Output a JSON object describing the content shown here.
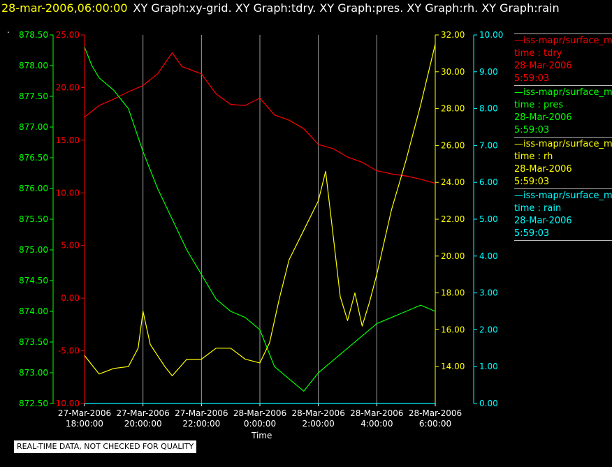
{
  "header": {
    "timestamp": "28-mar-2006,06:00:00",
    "graph_titles": "XY Graph:xy-grid.  XY Graph:tdry.  XY Graph:pres.  XY Graph:rh.  XY Graph:rain"
  },
  "marker": ".",
  "note": "REAL-TIME DATA, NOT CHECKED FOR QUALITY",
  "legend": [
    {
      "line": "—iss-mapr/surface_m",
      "var": "time : tdry",
      "date": "28-Mar-2006",
      "time": "5:59:03",
      "color": "#ff0000"
    },
    {
      "line": "—iss-mapr/surface_m",
      "var": "time : pres",
      "date": "28-Mar-2006",
      "time": "5:59:03",
      "color": "#00ff00"
    },
    {
      "line": "—iss-mapr/surface_m",
      "var": "time : rh",
      "date": "28-Mar-2006",
      "time": "5:59:03",
      "color": "#ffff00"
    },
    {
      "line": "—iss-mapr/surface_m",
      "var": "time : rain",
      "date": "28-Mar-2006",
      "time": "5:59:03",
      "color": "#00ffff"
    }
  ],
  "chart_data": {
    "type": "line",
    "xlabel": "Time",
    "x_ticks": [
      [
        "27-Mar-2006",
        "18:00:00"
      ],
      [
        "27-Mar-2006",
        "20:00:00"
      ],
      [
        "27-Mar-2006",
        "22:00:00"
      ],
      [
        "28-Mar-2006",
        "0:00:00"
      ],
      [
        "28-Mar-2006",
        "2:00:00"
      ],
      [
        "28-Mar-2006",
        "4:00:00"
      ],
      [
        "28-Mar-2006",
        "6:00:00"
      ]
    ],
    "xlim": [
      "2006-03-27T18:00",
      "2006-03-28T06:00"
    ],
    "grid": "vertical lines at x ticks",
    "axes": {
      "pres": {
        "color": "#00ff00",
        "side": "left-outer",
        "ylim": [
          872.5,
          878.5
        ],
        "ticks": [
          "872.50",
          "873.00",
          "873.50",
          "874.00",
          "874.50",
          "875.00",
          "875.50",
          "876.00",
          "876.50",
          "877.00",
          "877.50",
          "878.00",
          "878.50"
        ]
      },
      "tdry": {
        "color": "#ff0000",
        "side": "left-inner",
        "ylim": [
          -10,
          25
        ],
        "ticks": [
          "-10.00",
          "-5.00",
          "0.00",
          "5.00",
          "10.00",
          "15.00",
          "20.00",
          "25.00"
        ]
      },
      "rh": {
        "color": "#ffff00",
        "side": "right-inner",
        "ylim": [
          12,
          32
        ],
        "ticks": [
          "14.00",
          "16.00",
          "18.00",
          "20.00",
          "22.00",
          "24.00",
          "26.00",
          "28.00",
          "30.00",
          "32.00"
        ]
      },
      "rain": {
        "color": "#00ffff",
        "side": "right-outer",
        "ylim": [
          0,
          10
        ],
        "ticks": [
          "0.00",
          "1.00",
          "2.00",
          "3.00",
          "4.00",
          "5.00",
          "6.00",
          "7.00",
          "8.00",
          "9.00",
          "10.00"
        ]
      }
    },
    "series": [
      {
        "name": "tdry",
        "axis": "tdry",
        "color": "#ff0000",
        "x": [
          "2006-03-27T18:00",
          "2006-03-27T18:30",
          "2006-03-27T19:00",
          "2006-03-27T19:30",
          "2006-03-27T20:00",
          "2006-03-27T20:30",
          "2006-03-27T21:00",
          "2006-03-27T21:20",
          "2006-03-27T22:00",
          "2006-03-27T22:30",
          "2006-03-27T23:00",
          "2006-03-27T23:30",
          "2006-03-28T00:00",
          "2006-03-28T00:30",
          "2006-03-28T01:00",
          "2006-03-28T01:30",
          "2006-03-28T02:00",
          "2006-03-28T02:30",
          "2006-03-28T03:00",
          "2006-03-28T03:30",
          "2006-03-28T04:00",
          "2006-03-28T04:30",
          "2006-03-28T05:00",
          "2006-03-28T05:30",
          "2006-03-28T06:00"
        ],
        "y": [
          17.2,
          18.3,
          18.9,
          19.6,
          20.2,
          21.3,
          23.3,
          22.0,
          21.3,
          19.4,
          18.4,
          18.3,
          19.0,
          17.4,
          16.9,
          16.1,
          14.6,
          14.2,
          13.4,
          12.9,
          12.1,
          11.8,
          11.6,
          11.3,
          10.9
        ]
      },
      {
        "name": "pres",
        "axis": "pres",
        "color": "#00ff00",
        "x": [
          "2006-03-27T18:00",
          "2006-03-27T18:15",
          "2006-03-27T18:30",
          "2006-03-27T19:00",
          "2006-03-27T19:30",
          "2006-03-27T20:00",
          "2006-03-27T20:30",
          "2006-03-27T21:00",
          "2006-03-27T21:30",
          "2006-03-27T22:00",
          "2006-03-27T22:30",
          "2006-03-27T23:00",
          "2006-03-27T23:30",
          "2006-03-28T00:00",
          "2006-03-28T00:30",
          "2006-03-28T01:00",
          "2006-03-28T01:30",
          "2006-03-28T02:00",
          "2006-03-28T02:30",
          "2006-03-28T03:00",
          "2006-03-28T03:30",
          "2006-03-28T04:00",
          "2006-03-28T04:30",
          "2006-03-28T05:00",
          "2006-03-28T05:30",
          "2006-03-28T06:00"
        ],
        "y": [
          878.3,
          878.0,
          877.8,
          877.6,
          877.3,
          876.6,
          876.0,
          875.5,
          875.0,
          874.6,
          874.2,
          874.0,
          873.9,
          873.7,
          873.1,
          872.9,
          872.7,
          873.0,
          873.2,
          873.4,
          873.6,
          873.8,
          873.9,
          874.0,
          874.1,
          874.0
        ]
      },
      {
        "name": "rh",
        "axis": "rh",
        "color": "#ffff00",
        "x": [
          "2006-03-27T18:00",
          "2006-03-27T18:30",
          "2006-03-27T19:00",
          "2006-03-27T19:30",
          "2006-03-27T19:50",
          "2006-03-27T20:00",
          "2006-03-27T20:15",
          "2006-03-27T20:45",
          "2006-03-27T21:00",
          "2006-03-27T21:30",
          "2006-03-27T22:00",
          "2006-03-27T22:30",
          "2006-03-27T23:00",
          "2006-03-27T23:30",
          "2006-03-28T00:00",
          "2006-03-28T00:20",
          "2006-03-28T00:40",
          "2006-03-28T01:00",
          "2006-03-28T01:30",
          "2006-03-28T02:00",
          "2006-03-28T02:15",
          "2006-03-28T02:30",
          "2006-03-28T02:45",
          "2006-03-28T03:00",
          "2006-03-28T03:15",
          "2006-03-28T03:30",
          "2006-03-28T03:45",
          "2006-03-28T04:00",
          "2006-03-28T04:30",
          "2006-03-28T05:00",
          "2006-03-28T05:30",
          "2006-03-28T06:00"
        ],
        "y": [
          14.6,
          13.6,
          13.9,
          14.0,
          15.0,
          17.0,
          15.2,
          14.0,
          13.5,
          14.4,
          14.4,
          15.0,
          15.0,
          14.4,
          14.2,
          15.3,
          17.7,
          19.8,
          21.4,
          23.0,
          24.6,
          21.2,
          17.8,
          16.5,
          18.0,
          16.2,
          17.5,
          19.0,
          22.5,
          25.2,
          28.2,
          31.5
        ]
      },
      {
        "name": "rain",
        "axis": "rain",
        "color": "#00ffff",
        "x": [
          "2006-03-27T18:00",
          "2006-03-28T06:00"
        ],
        "y": [
          0.0,
          0.0
        ]
      }
    ]
  }
}
